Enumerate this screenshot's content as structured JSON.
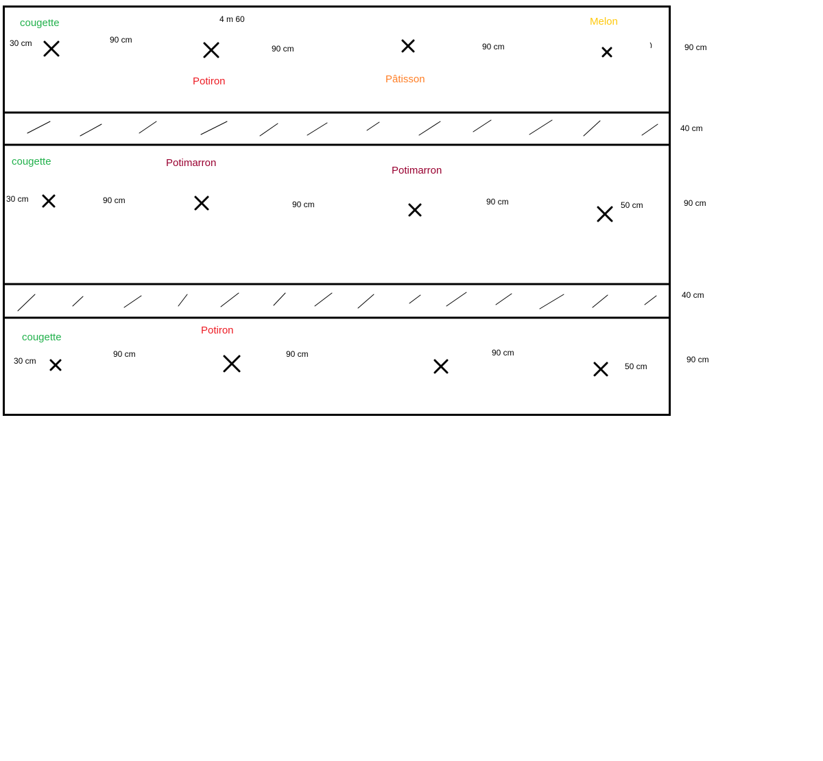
{
  "colors": {
    "courgette": "#22b14c",
    "potiron": "#ed1c24",
    "patisson": "#ff7f27",
    "melon": "#ffc90e",
    "potimarron": "#990030",
    "line": "#000000"
  },
  "title": "4 m 60",
  "beds": [
    {
      "plants": [
        {
          "name": "cougette",
          "color": "courgette"
        },
        {
          "name": "Potiron",
          "color": "potiron"
        },
        {
          "name": "Pâtisson",
          "color": "patisson"
        },
        {
          "name": "Melon",
          "color": "melon"
        }
      ],
      "spacings": [
        "30 cm",
        "90 cm",
        "90 cm",
        "90 cm"
      ],
      "side_label": "90 cm",
      "marks": 4
    },
    {
      "plants": [
        {
          "name": "cougette",
          "color": "courgette"
        },
        {
          "name": "Potimarron",
          "color": "potimarron"
        },
        {
          "name": "Potimarron",
          "color": "potimarron"
        }
      ],
      "spacings": [
        "30 cm",
        "90 cm",
        "90 cm",
        "90 cm",
        "50 cm"
      ],
      "side_label": "90 cm",
      "marks": 4
    },
    {
      "plants": [
        {
          "name": "cougette",
          "color": "courgette"
        },
        {
          "name": "Potiron",
          "color": "potiron"
        }
      ],
      "spacings": [
        "30 cm",
        "90 cm",
        "90 cm",
        "90 cm",
        "50 cm"
      ],
      "side_label": "90 cm",
      "marks": 4
    }
  ],
  "paths": [
    {
      "side_label": "40 cm"
    },
    {
      "side_label": "40 cm"
    }
  ]
}
